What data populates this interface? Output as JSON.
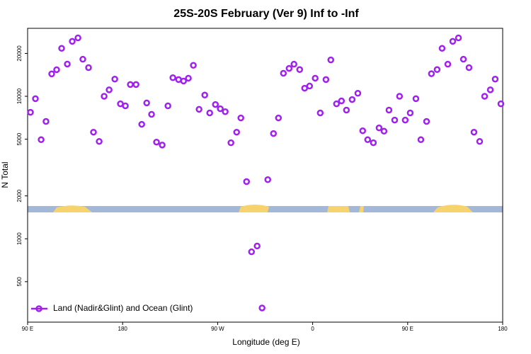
{
  "chart_data": {
    "type": "scatter",
    "title": "25S-20S February (Ver 9)   Inf to -Inf",
    "x_label": "Longitude (deg E)",
    "y_label": "N Total",
    "y_log": true,
    "color": "#a020f0",
    "xlim": [
      90,
      540
    ],
    "ylim": [
      260,
      30000
    ],
    "xticks": [
      {
        "value": 90,
        "label": "90 E"
      },
      {
        "value": 180,
        "label": "180"
      },
      {
        "value": 270,
        "label": "90 W"
      },
      {
        "value": 360,
        "label": "0"
      },
      {
        "value": 450,
        "label": "90 E"
      },
      {
        "value": 540,
        "label": "180"
      }
    ],
    "yticks": [
      500,
      1000,
      2000,
      5000,
      10000,
      20000
    ],
    "legend_position": "lower left",
    "series": [
      {
        "name": "Land (Nadir&Glint) and Ocean (Glint)",
        "color": "#a020f0",
        "x": [
          92.7,
          97.4,
          102.8,
          107.4,
          112.8,
          117.5,
          122.2,
          127.6,
          132.3,
          137.7,
          142.3,
          147.7,
          152.4,
          157.8,
          162.5,
          167.2,
          172.6,
          177.9,
          182.6,
          187.3,
          192.7,
          198.1,
          202.8,
          207.4,
          212.1,
          217.5,
          222.9,
          227.6,
          233.0,
          237.7,
          242.3,
          247.0,
          252.4,
          257.8,
          262.5,
          267.9,
          272.5,
          277.2,
          282.6,
          288.0,
          292.0,
          297.4,
          302.1,
          307.4,
          312.1,
          317.5,
          322.9,
          327.6,
          332.3,
          337.7,
          342.3,
          347.7,
          352.4,
          357.1,
          362.4,
          367.2,
          372.6,
          377.2,
          382.6,
          387.3,
          392.0,
          397.4,
          402.8,
          407.4,
          412.1,
          417.5,
          422.9,
          427.6,
          432.3,
          437.7,
          442.3,
          447.7,
          452.4,
          457.8,
          462.5,
          467.9,
          472.5,
          477.9,
          482.6,
          488.0,
          492.7,
          498.1,
          502.8,
          508.1,
          512.8,
          518.2,
          522.9,
          528.3,
          532.9,
          538.3
        ],
        "values": [
          7720,
          9620,
          4960,
          6660,
          14360,
          15370,
          21700,
          16840,
          24300,
          25700,
          18200,
          15900,
          5600,
          4820,
          10000,
          11100,
          13200,
          8860,
          8570,
          12100,
          12100,
          6360,
          8980,
          7470,
          4770,
          4550,
          8570,
          13500,
          13100,
          12800,
          13400,
          16500,
          8100,
          10200,
          7640,
          8760,
          8180,
          7800,
          4720,
          5600,
          7050,
          2520,
          810,
          890,
          327,
          2600,
          5480,
          7050,
          14500,
          15700,
          16800,
          15400,
          11400,
          11800,
          13400,
          7640,
          13100,
          18000,
          8860,
          9280,
          8000,
          9490,
          10500,
          5730,
          4960,
          4720,
          6000,
          5690,
          8000,
          6810,
          10000,
          6810,
          7640,
          9620,
          4960,
          6660,
          14400,
          15400,
          21700,
          16800,
          24300,
          25700,
          18200,
          15900,
          5600,
          4820,
          10000,
          11100,
          13200,
          8860
        ]
      }
    ]
  }
}
